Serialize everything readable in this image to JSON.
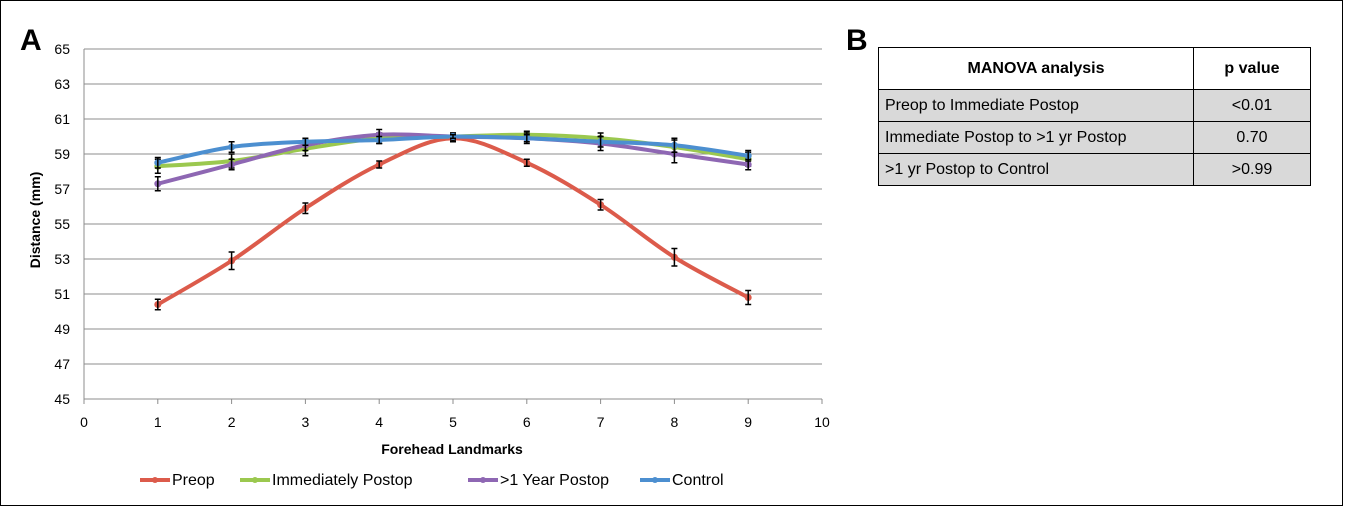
{
  "panels": {
    "a_label": "A",
    "b_label": "B"
  },
  "chart_data": {
    "type": "line",
    "title": "",
    "xlabel": "Forehead Landmarks",
    "ylabel": "Distance (mm)",
    "xlim": [
      0,
      10
    ],
    "ylim": [
      45,
      65
    ],
    "x_ticks": [
      0,
      1,
      2,
      3,
      4,
      5,
      6,
      7,
      8,
      9,
      10
    ],
    "y_ticks": [
      45,
      47,
      49,
      51,
      53,
      55,
      57,
      59,
      61,
      63,
      65
    ],
    "grid": "horizontal",
    "legend_position": "bottom",
    "x": [
      1,
      2,
      3,
      4,
      5,
      6,
      7,
      8,
      9
    ],
    "series": [
      {
        "name": "Preop",
        "color": "#dc5b4b",
        "values": [
          50.4,
          52.9,
          55.9,
          58.4,
          59.9,
          58.5,
          56.1,
          53.1,
          50.8
        ],
        "errors": [
          0.3,
          0.5,
          0.3,
          0.2,
          0.2,
          0.2,
          0.3,
          0.5,
          0.4
        ]
      },
      {
        "name": "Immediately Postop",
        "color": "#9bc84f",
        "values": [
          58.3,
          58.6,
          59.3,
          59.9,
          60.0,
          60.1,
          59.9,
          59.4,
          58.7
        ],
        "errors": [
          0.4,
          0.4,
          0.4,
          0.3,
          0.2,
          0.2,
          0.3,
          0.4,
          0.4
        ]
      },
      {
        "name": ">1 Year Postop",
        "color": "#8e67b3",
        "values": [
          57.3,
          58.4,
          59.5,
          60.1,
          60.0,
          59.9,
          59.6,
          59.0,
          58.4
        ],
        "errors": [
          0.4,
          0.3,
          0.3,
          0.3,
          0.2,
          0.3,
          0.4,
          0.5,
          0.3
        ]
      },
      {
        "name": "Control",
        "color": "#4c8fd0",
        "values": [
          58.5,
          59.4,
          59.7,
          59.8,
          60.0,
          59.9,
          59.7,
          59.5,
          58.9
        ],
        "errors": [
          0.3,
          0.3,
          0.2,
          0.2,
          0.1,
          0.2,
          0.3,
          0.4,
          0.3
        ]
      }
    ]
  },
  "table": {
    "headers": [
      "MANOVA analysis",
      "p value"
    ],
    "rows": [
      {
        "comparison": "Preop to Immediate Postop",
        "p_value": "<0.01"
      },
      {
        "comparison": "Immediate Postop to >1 yr Postop",
        "p_value": "0.70"
      },
      {
        "comparison": ">1 yr Postop to Control",
        "p_value": ">0.99"
      }
    ]
  }
}
